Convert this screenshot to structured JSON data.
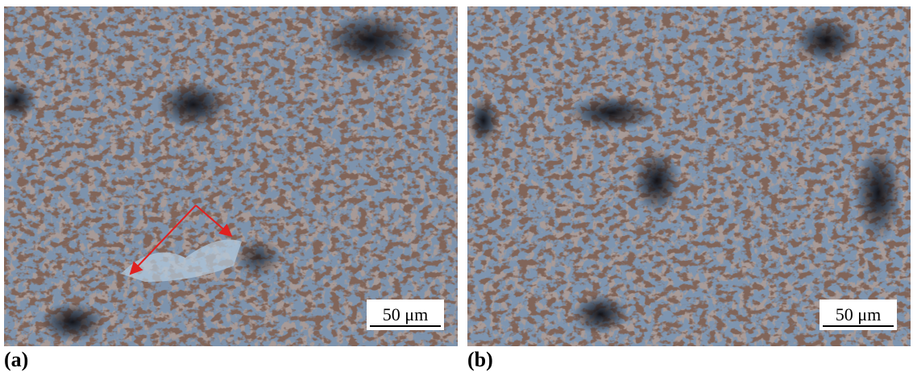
{
  "panels": [
    {
      "label": "(a)",
      "scale_bar": "50 μm"
    },
    {
      "label": "(b)",
      "scale_bar": "50 μm"
    }
  ]
}
